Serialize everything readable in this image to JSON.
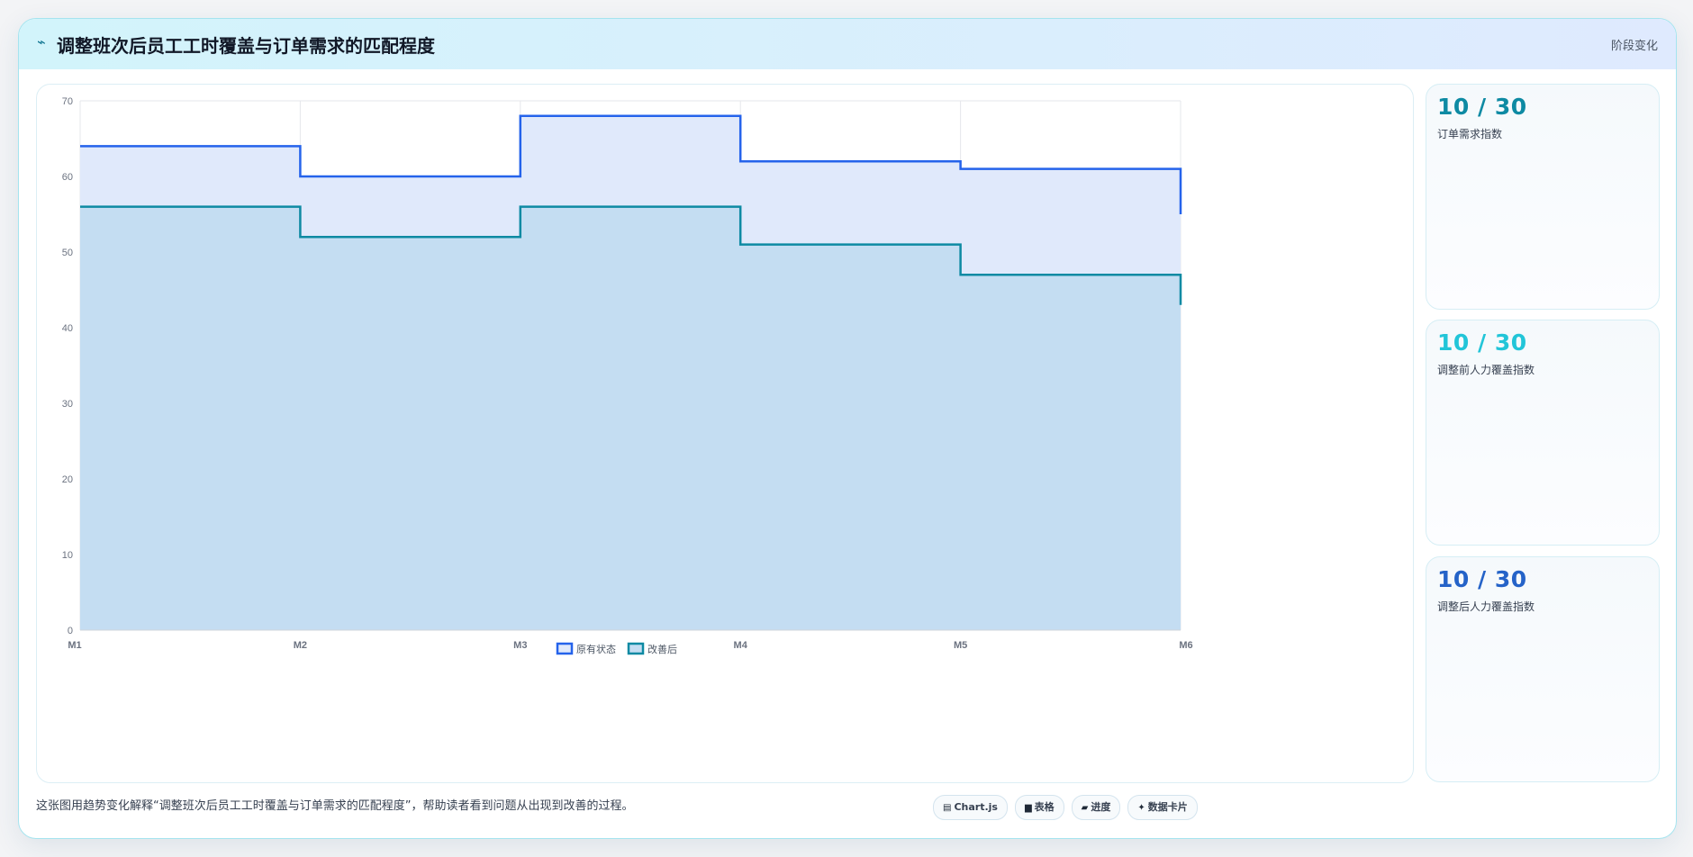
{
  "header": {
    "icon": "chart-icon",
    "title": "调整班次后员工工时覆盖与订单需求的匹配程度",
    "tag": "阶段变化"
  },
  "colors": {
    "series1": "#2563eb",
    "series2": "#0e8aa3",
    "series1_fill": "#e0e9fb",
    "series2_fill": "#c4ddf2",
    "grid": "#e5e7eb",
    "card1_value": "#0e8aa3",
    "card2_value": "#22c5d8",
    "card3_value": "#2563c8"
  },
  "chart_data": {
    "type": "line",
    "stepped": true,
    "filled": true,
    "title": "",
    "xlabel": "",
    "ylabel": "",
    "categories": [
      "M1",
      "M2",
      "M3",
      "M4",
      "M5",
      "M6"
    ],
    "ylim": [
      0,
      70
    ],
    "yticks": [
      0,
      10,
      20,
      30,
      40,
      50,
      60,
      70
    ],
    "grid": true,
    "legend_position": "bottom",
    "series": [
      {
        "name": "原有状态",
        "values": [
          64,
          60,
          68,
          62,
          61,
          55
        ]
      },
      {
        "name": "改善后",
        "values": [
          56,
          52,
          56,
          51,
          47,
          43
        ]
      }
    ]
  },
  "side_cards": [
    {
      "value": "10 / 30",
      "label": "订单需求指数"
    },
    {
      "value": "10 / 30",
      "label": "调整前人力覆盖指数"
    },
    {
      "value": "10 / 30",
      "label": "调整后人力覆盖指数"
    }
  ],
  "footer": {
    "description": "这张图用趋势变化解释“调整班次后员工工时覆盖与订单需求的匹配程度”，帮助读者看到问题从出现到改善的过程。",
    "pills": [
      {
        "icon": "chart-icon",
        "label": "Chart.js"
      },
      {
        "icon": "table-icon",
        "label": "表格"
      },
      {
        "icon": "progress-icon",
        "label": "进度"
      },
      {
        "icon": "card-icon",
        "label": "数据卡片"
      }
    ]
  }
}
